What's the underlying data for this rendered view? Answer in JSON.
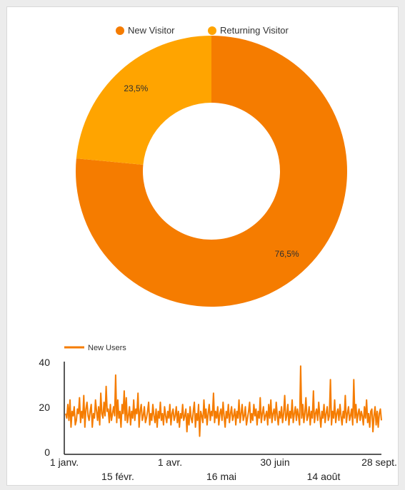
{
  "colors": {
    "new_visitor": "#f57c00",
    "returning_visitor": "#ffa400",
    "line": "#f57c00"
  },
  "chart_data": [
    {
      "type": "pie",
      "donut": true,
      "legend_position": "top",
      "series": [
        {
          "name": "New Visitor",
          "value": 76.5,
          "label": "76,5%"
        },
        {
          "name": "Returning Visitor",
          "value": 23.5,
          "label": "23,5%"
        }
      ]
    },
    {
      "type": "line",
      "legend_position": "top-left",
      "grid": false,
      "ylim": [
        0,
        40
      ],
      "yticks": [
        "0",
        "20",
        "40"
      ],
      "xlim": [
        "2021-01-01",
        "2021-09-28"
      ],
      "xticks_top": [
        "1 janv.",
        "1 avr.",
        "30 juin",
        "28 sept."
      ],
      "xticks_bottom": [
        "15 févr.",
        "16 mai",
        "14 août"
      ],
      "series": [
        {
          "name": "New Users",
          "x_start": "2021-01-01",
          "x_step_days": 1,
          "values": [
            18,
            16,
            22,
            15,
            24,
            12,
            19,
            17,
            21,
            13,
            15,
            20,
            18,
            25,
            14,
            19,
            16,
            26,
            12,
            20,
            23,
            17,
            15,
            19,
            22,
            12,
            18,
            16,
            24,
            19,
            15,
            21,
            13,
            27,
            18,
            16,
            23,
            17,
            30,
            19,
            20,
            14,
            22,
            15,
            18,
            21,
            17,
            35,
            14,
            24,
            16,
            19,
            12,
            22,
            18,
            28,
            15,
            25,
            14,
            17,
            21,
            13,
            19,
            16,
            24,
            15,
            20,
            18,
            27,
            12,
            19,
            22,
            15,
            17,
            21,
            14,
            16,
            19,
            23,
            13,
            18,
            15,
            22,
            17,
            14,
            20,
            12,
            19,
            16,
            23,
            15,
            18,
            13,
            21,
            17,
            14,
            19,
            16,
            22,
            13,
            18,
            20,
            15,
            17,
            21,
            14,
            19,
            12,
            18,
            16,
            22,
            15,
            17,
            20,
            10,
            18,
            13,
            21,
            16,
            14,
            19,
            23,
            12,
            18,
            15,
            22,
            8,
            19,
            17,
            14,
            24,
            16,
            20,
            13,
            18,
            22,
            15,
            19,
            17,
            27,
            14,
            19,
            16,
            21,
            13,
            18,
            20,
            15,
            23,
            17,
            12,
            19,
            16,
            22,
            14,
            18,
            21,
            15,
            17,
            20,
            13,
            19,
            16,
            24,
            14,
            18,
            22,
            15,
            17,
            21,
            13,
            16,
            19,
            23,
            14,
            18,
            15,
            22,
            17,
            20,
            13,
            19,
            16,
            25,
            14,
            18,
            21,
            15,
            17,
            19,
            13,
            22,
            16,
            24,
            14,
            18,
            20,
            15,
            23,
            17,
            13,
            19,
            16,
            21,
            14,
            18,
            26,
            15,
            17,
            22,
            13,
            19,
            16,
            24,
            14,
            18,
            21,
            15,
            20,
            17,
            13,
            39,
            16,
            22,
            14,
            18,
            25,
            15,
            17,
            21,
            13,
            19,
            16,
            28,
            14,
            18,
            20,
            15,
            23,
            17,
            12,
            19,
            16,
            22,
            14,
            18,
            21,
            15,
            17,
            33,
            13,
            19,
            16,
            24,
            14,
            18,
            20,
            15,
            22,
            17,
            13,
            19,
            16,
            26,
            14,
            18,
            21,
            15,
            17,
            20,
            13,
            33,
            16,
            22,
            14,
            18,
            20,
            15,
            19,
            17,
            13,
            21,
            16,
            24,
            14,
            18,
            12,
            19,
            20,
            10,
            17,
            21,
            13,
            19,
            12,
            18,
            20,
            15
          ]
        }
      ]
    }
  ]
}
